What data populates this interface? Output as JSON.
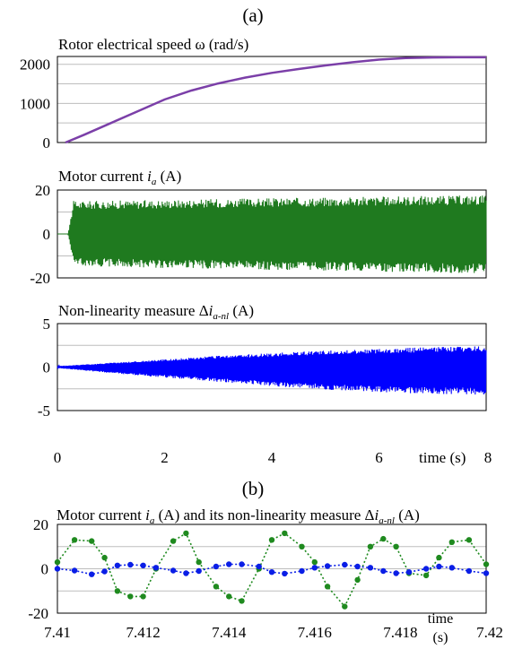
{
  "figure": {
    "panel_a_label": "(a)",
    "panel_b_label": "(b)"
  },
  "chart_data": [
    {
      "type": "line",
      "title": "Rotor electrical speed ω (rad/s)",
      "xlim": [
        0,
        8
      ],
      "ylim": [
        0,
        2200
      ],
      "yticks": [
        "2000",
        "1000",
        "0"
      ],
      "grid": true,
      "series": [
        {
          "color": "#7b3fa8",
          "x": [
            0.15,
            0.5,
            1.0,
            1.5,
            2.0,
            2.5,
            3.0,
            3.5,
            4.0,
            4.5,
            5.0,
            5.5,
            6.0,
            6.5,
            7.0,
            7.5,
            8.0
          ],
          "y": [
            0,
            200,
            500,
            800,
            1100,
            1330,
            1510,
            1660,
            1780,
            1880,
            1970,
            2050,
            2120,
            2160,
            2175,
            2180,
            2180
          ]
        }
      ]
    },
    {
      "type": "line",
      "title": "Motor current ia (A)",
      "title_parts": {
        "pre": "Motor current ",
        "var": "i",
        "sub": "a",
        "post": " (A)"
      },
      "xlim": [
        0,
        8
      ],
      "ylim": [
        -20,
        20
      ],
      "yticks": [
        "20",
        "0",
        "-20"
      ],
      "grid": true,
      "series": [
        {
          "color": "#1f7a1f",
          "envelope_x": [
            0.2,
            0.3,
            0.5,
            1,
            2,
            3,
            4,
            5,
            6,
            7,
            8
          ],
          "envelope_upper": [
            0,
            15,
            15,
            15.2,
            15.5,
            16,
            16.3,
            16.7,
            17,
            17.4,
            17.7
          ],
          "envelope_lower": [
            0,
            -14,
            -14.5,
            -15,
            -15.5,
            -16,
            -16.4,
            -16.8,
            -17.2,
            -17.6,
            -18
          ]
        }
      ]
    },
    {
      "type": "line",
      "title": "Non-linearity measure Δia-nl (A)",
      "title_parts": {
        "pre": "Non-linearity measure Δ",
        "var": "i",
        "sub": "a-nl",
        "post": " (A)"
      },
      "xlim": [
        0,
        8
      ],
      "ylim": [
        -5,
        5
      ],
      "yticks": [
        "5",
        "0",
        "-5"
      ],
      "xticks": [
        "0",
        "2",
        "4",
        "6",
        "8"
      ],
      "xlabel": "time (s)",
      "grid": true,
      "series": [
        {
          "color": "#0000ff",
          "envelope_x": [
            0,
            0.5,
            1,
            2,
            3,
            4,
            5,
            6,
            7,
            8
          ],
          "envelope_upper": [
            0.1,
            0.3,
            0.5,
            0.9,
            1.3,
            1.6,
            1.9,
            2.1,
            2.3,
            2.4
          ],
          "envelope_lower": [
            -0.1,
            -0.4,
            -0.7,
            -1.2,
            -1.7,
            -2.2,
            -2.6,
            -2.9,
            -3.1,
            -3.2
          ]
        }
      ]
    },
    {
      "type": "line",
      "title": "Motor current ia (A) and its non-linearity measure Δia-nl (A)",
      "title_parts": {
        "pre": "Motor current ",
        "var": "i",
        "sub": "a",
        "mid": " (A) and its non-linearity measure Δ",
        "var2": "i",
        "sub2": "a-nl",
        "post": " (A)"
      },
      "xlim": [
        7.41,
        7.42
      ],
      "ylim": [
        -20,
        20
      ],
      "yticks": [
        "20",
        "0",
        "-20"
      ],
      "xticks": [
        "7.41",
        "7.412",
        "7.414",
        "7.416",
        "7.418",
        "7.42"
      ],
      "xlabel": "time\n(s)",
      "grid": true,
      "series": [
        {
          "name": "ia",
          "color": "#1f8a1f",
          "x": [
            7.41,
            7.4104,
            7.4108,
            7.4111,
            7.4114,
            7.4117,
            7.412,
            7.4123,
            7.4127,
            7.413,
            7.4133,
            7.4137,
            7.414,
            7.4143,
            7.4147,
            7.415,
            7.4153,
            7.4157,
            7.416,
            7.4163,
            7.4167,
            7.417,
            7.4173,
            7.4176,
            7.4179,
            7.4182,
            7.4186,
            7.4189,
            7.4192,
            7.4196,
            7.42
          ],
          "y": [
            3,
            13,
            12.5,
            5,
            -10,
            -12.5,
            -12.5,
            0,
            12.5,
            16,
            3,
            -8,
            -12.5,
            -14.5,
            0,
            13,
            16,
            10,
            3,
            -8,
            -17,
            -5,
            10,
            13.5,
            10,
            -2,
            -3,
            5,
            12,
            13,
            2
          ]
        },
        {
          "name": "Δia-nl",
          "color": "#0a1ee6",
          "x": [
            7.41,
            7.4104,
            7.4108,
            7.4111,
            7.4114,
            7.4117,
            7.412,
            7.4123,
            7.4127,
            7.413,
            7.4133,
            7.4137,
            7.414,
            7.4143,
            7.4147,
            7.415,
            7.4153,
            7.4157,
            7.416,
            7.4163,
            7.4167,
            7.417,
            7.4173,
            7.4176,
            7.4179,
            7.4182,
            7.4186,
            7.4189,
            7.4192,
            7.4196,
            7.42
          ],
          "y": [
            0,
            -0.8,
            -2.5,
            -1.2,
            1.5,
            1.8,
            1.5,
            0.5,
            -0.8,
            -2,
            -1,
            1,
            2,
            2,
            1,
            -1.5,
            -2.2,
            -1,
            0.5,
            1.2,
            1.8,
            1,
            0.5,
            -1,
            -2,
            -1.5,
            0,
            1,
            0.5,
            -1,
            -2
          ]
        }
      ]
    }
  ]
}
